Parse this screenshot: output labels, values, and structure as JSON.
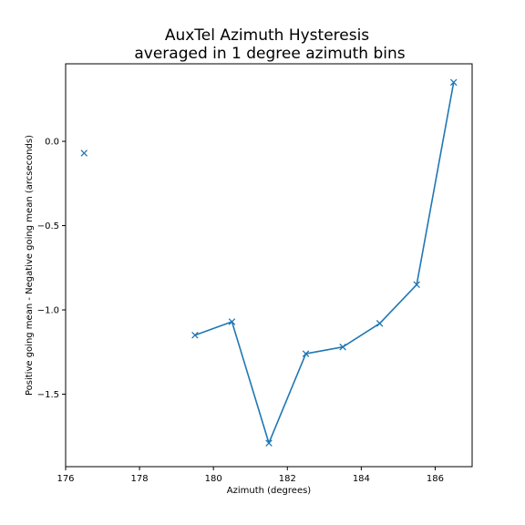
{
  "chart_data": {
    "type": "line",
    "title": "AuxTel Azimuth Hysteresis",
    "subtitle": "averaged in 1 degree azimuth bins",
    "xlabel": "Azimuth (degrees)",
    "ylabel": "Positive going mean - Negative going mean (arcseconds)",
    "xlim": [
      176,
      187
    ],
    "ylim": [
      -1.93,
      0.46
    ],
    "x_ticks": [
      176,
      178,
      180,
      182,
      184,
      186
    ],
    "x_tick_labels": [
      "176",
      "178",
      "180",
      "182",
      "184",
      "186"
    ],
    "y_ticks": [
      -1.5,
      -1.0,
      -0.5,
      0.0
    ],
    "y_tick_labels": [
      "−1.5",
      "−1.0",
      "−0.5",
      "0.0"
    ],
    "grid": false,
    "marker": "x",
    "color": "#1f77b4",
    "series": [
      {
        "segments": [
          [
            {
              "x": 176.5,
              "y": -0.07
            }
          ],
          [
            {
              "x": 179.5,
              "y": -1.15
            },
            {
              "x": 180.5,
              "y": -1.07
            },
            {
              "x": 181.5,
              "y": -1.79
            },
            {
              "x": 182.5,
              "y": -1.26
            },
            {
              "x": 183.5,
              "y": -1.22
            },
            {
              "x": 184.5,
              "y": -1.08
            },
            {
              "x": 185.5,
              "y": -0.85
            },
            {
              "x": 186.5,
              "y": 0.35
            }
          ]
        ]
      }
    ]
  }
}
